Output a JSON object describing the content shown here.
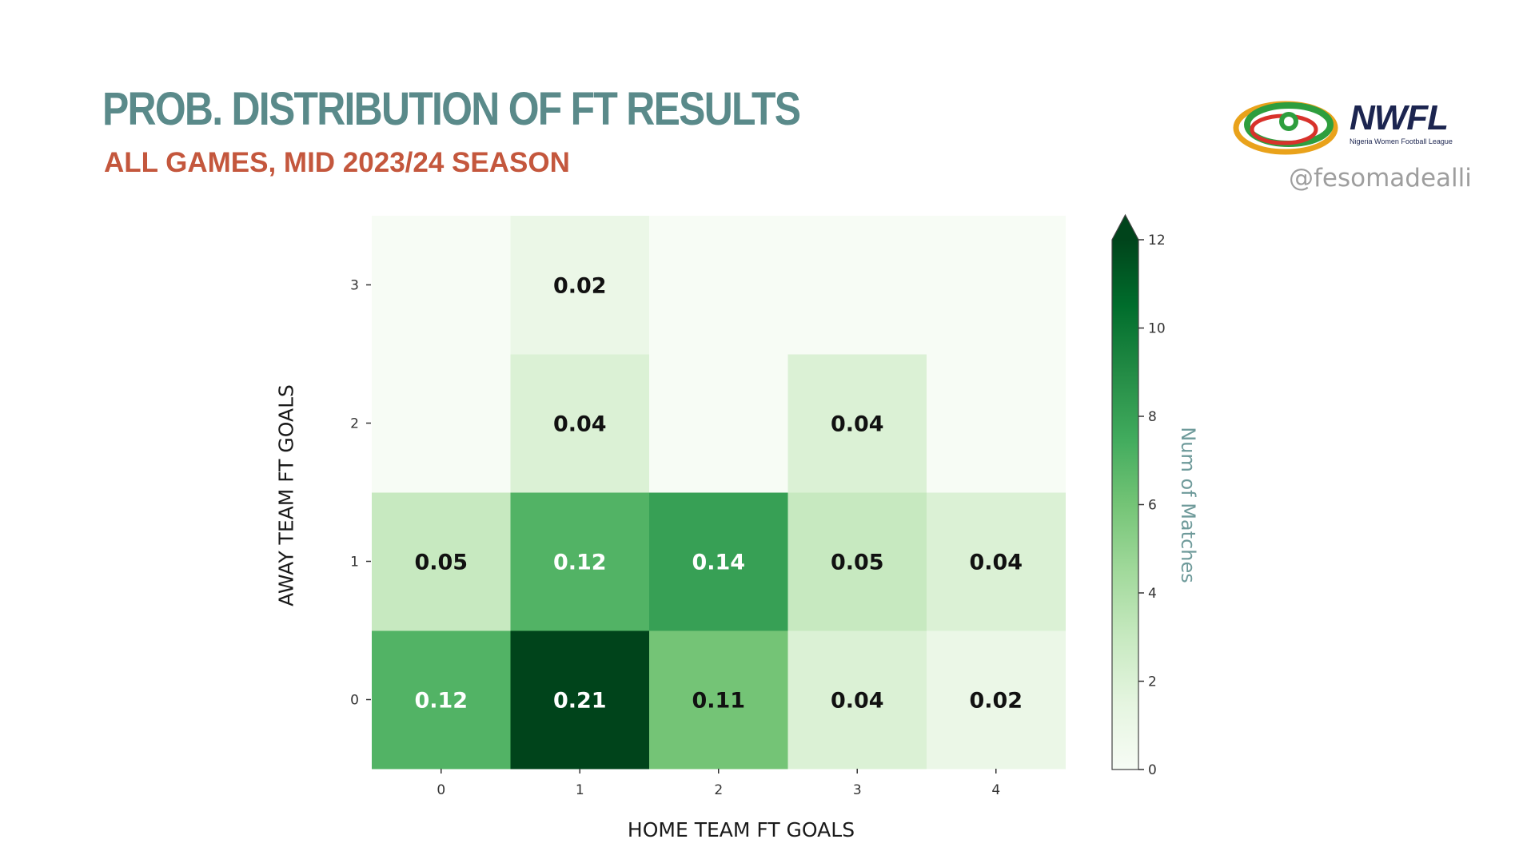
{
  "header": {
    "title": "PROB. DISTRIBUTION OF FT RESULTS",
    "subtitle": "ALL GAMES, MID 2023/24 SEASON",
    "handle": "@fesomadealli"
  },
  "logo": {
    "name": "NWFL",
    "tagline": "Nigeria Women Football League"
  },
  "colors": {
    "title": "#5a8a8a",
    "subtitle": "#c4573d",
    "colormap": [
      "#f7fcf5",
      "#e5f5e0",
      "#c7e9c0",
      "#a1d99b",
      "#74c476",
      "#41ab5d",
      "#238b45",
      "#006d2c",
      "#00441b"
    ]
  },
  "chart_data": {
    "type": "heatmap",
    "xlabel": "HOME TEAM FT GOALS",
    "ylabel": "AWAY TEAM FT GOALS",
    "x_categories": [
      "0",
      "1",
      "2",
      "3",
      "4"
    ],
    "y_categories": [
      "0",
      "1",
      "2",
      "3"
    ],
    "counts": [
      [
        7,
        12,
        6,
        2,
        1
      ],
      [
        3,
        7,
        8,
        3,
        2
      ],
      [
        0,
        2,
        0,
        2,
        0
      ],
      [
        0,
        1,
        0,
        0,
        0
      ]
    ],
    "labels": [
      [
        "0.12",
        "0.21",
        "0.11",
        "0.04",
        "0.02"
      ],
      [
        "0.05",
        "0.12",
        "0.14",
        "0.05",
        "0.04"
      ],
      [
        "",
        "0.04",
        "",
        "0.04",
        ""
      ],
      [
        "",
        "0.02",
        "",
        "",
        ""
      ]
    ],
    "colorbar": {
      "label": "Num of Matches",
      "range": [
        0,
        12
      ],
      "ticks": [
        "0",
        "2",
        "4",
        "6",
        "8",
        "10",
        "12"
      ],
      "extend": "max"
    }
  }
}
